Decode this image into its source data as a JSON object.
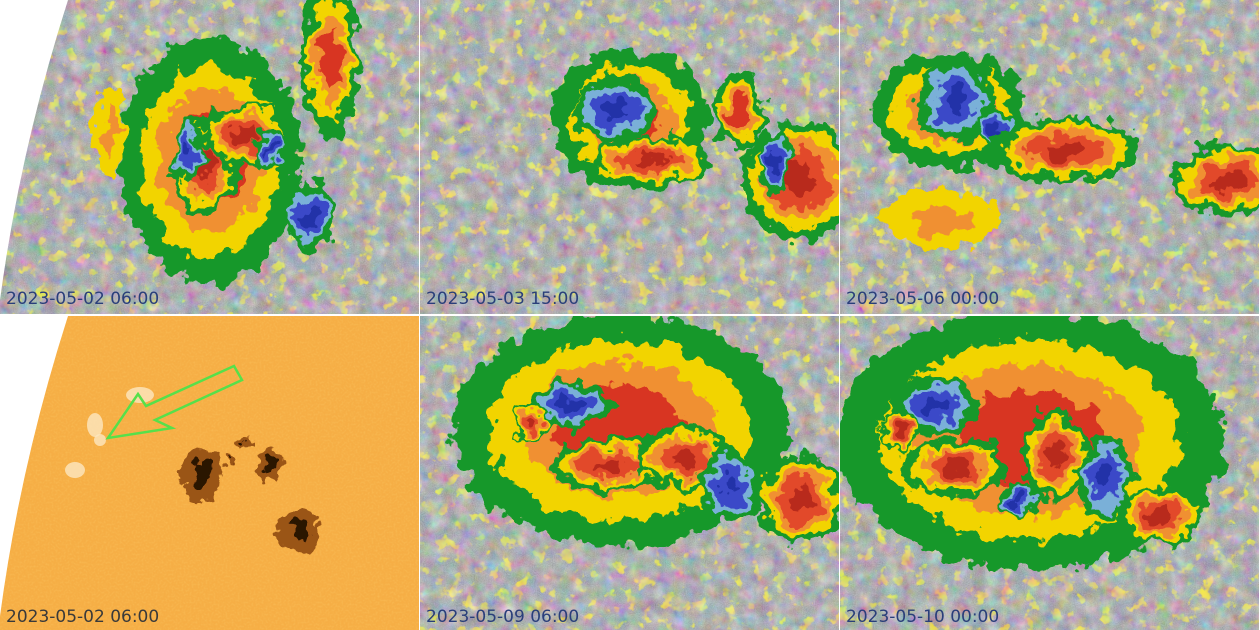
{
  "panels": [
    {
      "label": "2023-05-02 06:00"
    },
    {
      "label": "2023-05-03 15:00"
    },
    {
      "label": "2023-05-06 00:00"
    },
    {
      "label": "2023-05-02 06:00"
    },
    {
      "label": "2023-05-09 06:00"
    },
    {
      "label": "2023-05-10 00:00"
    }
  ]
}
